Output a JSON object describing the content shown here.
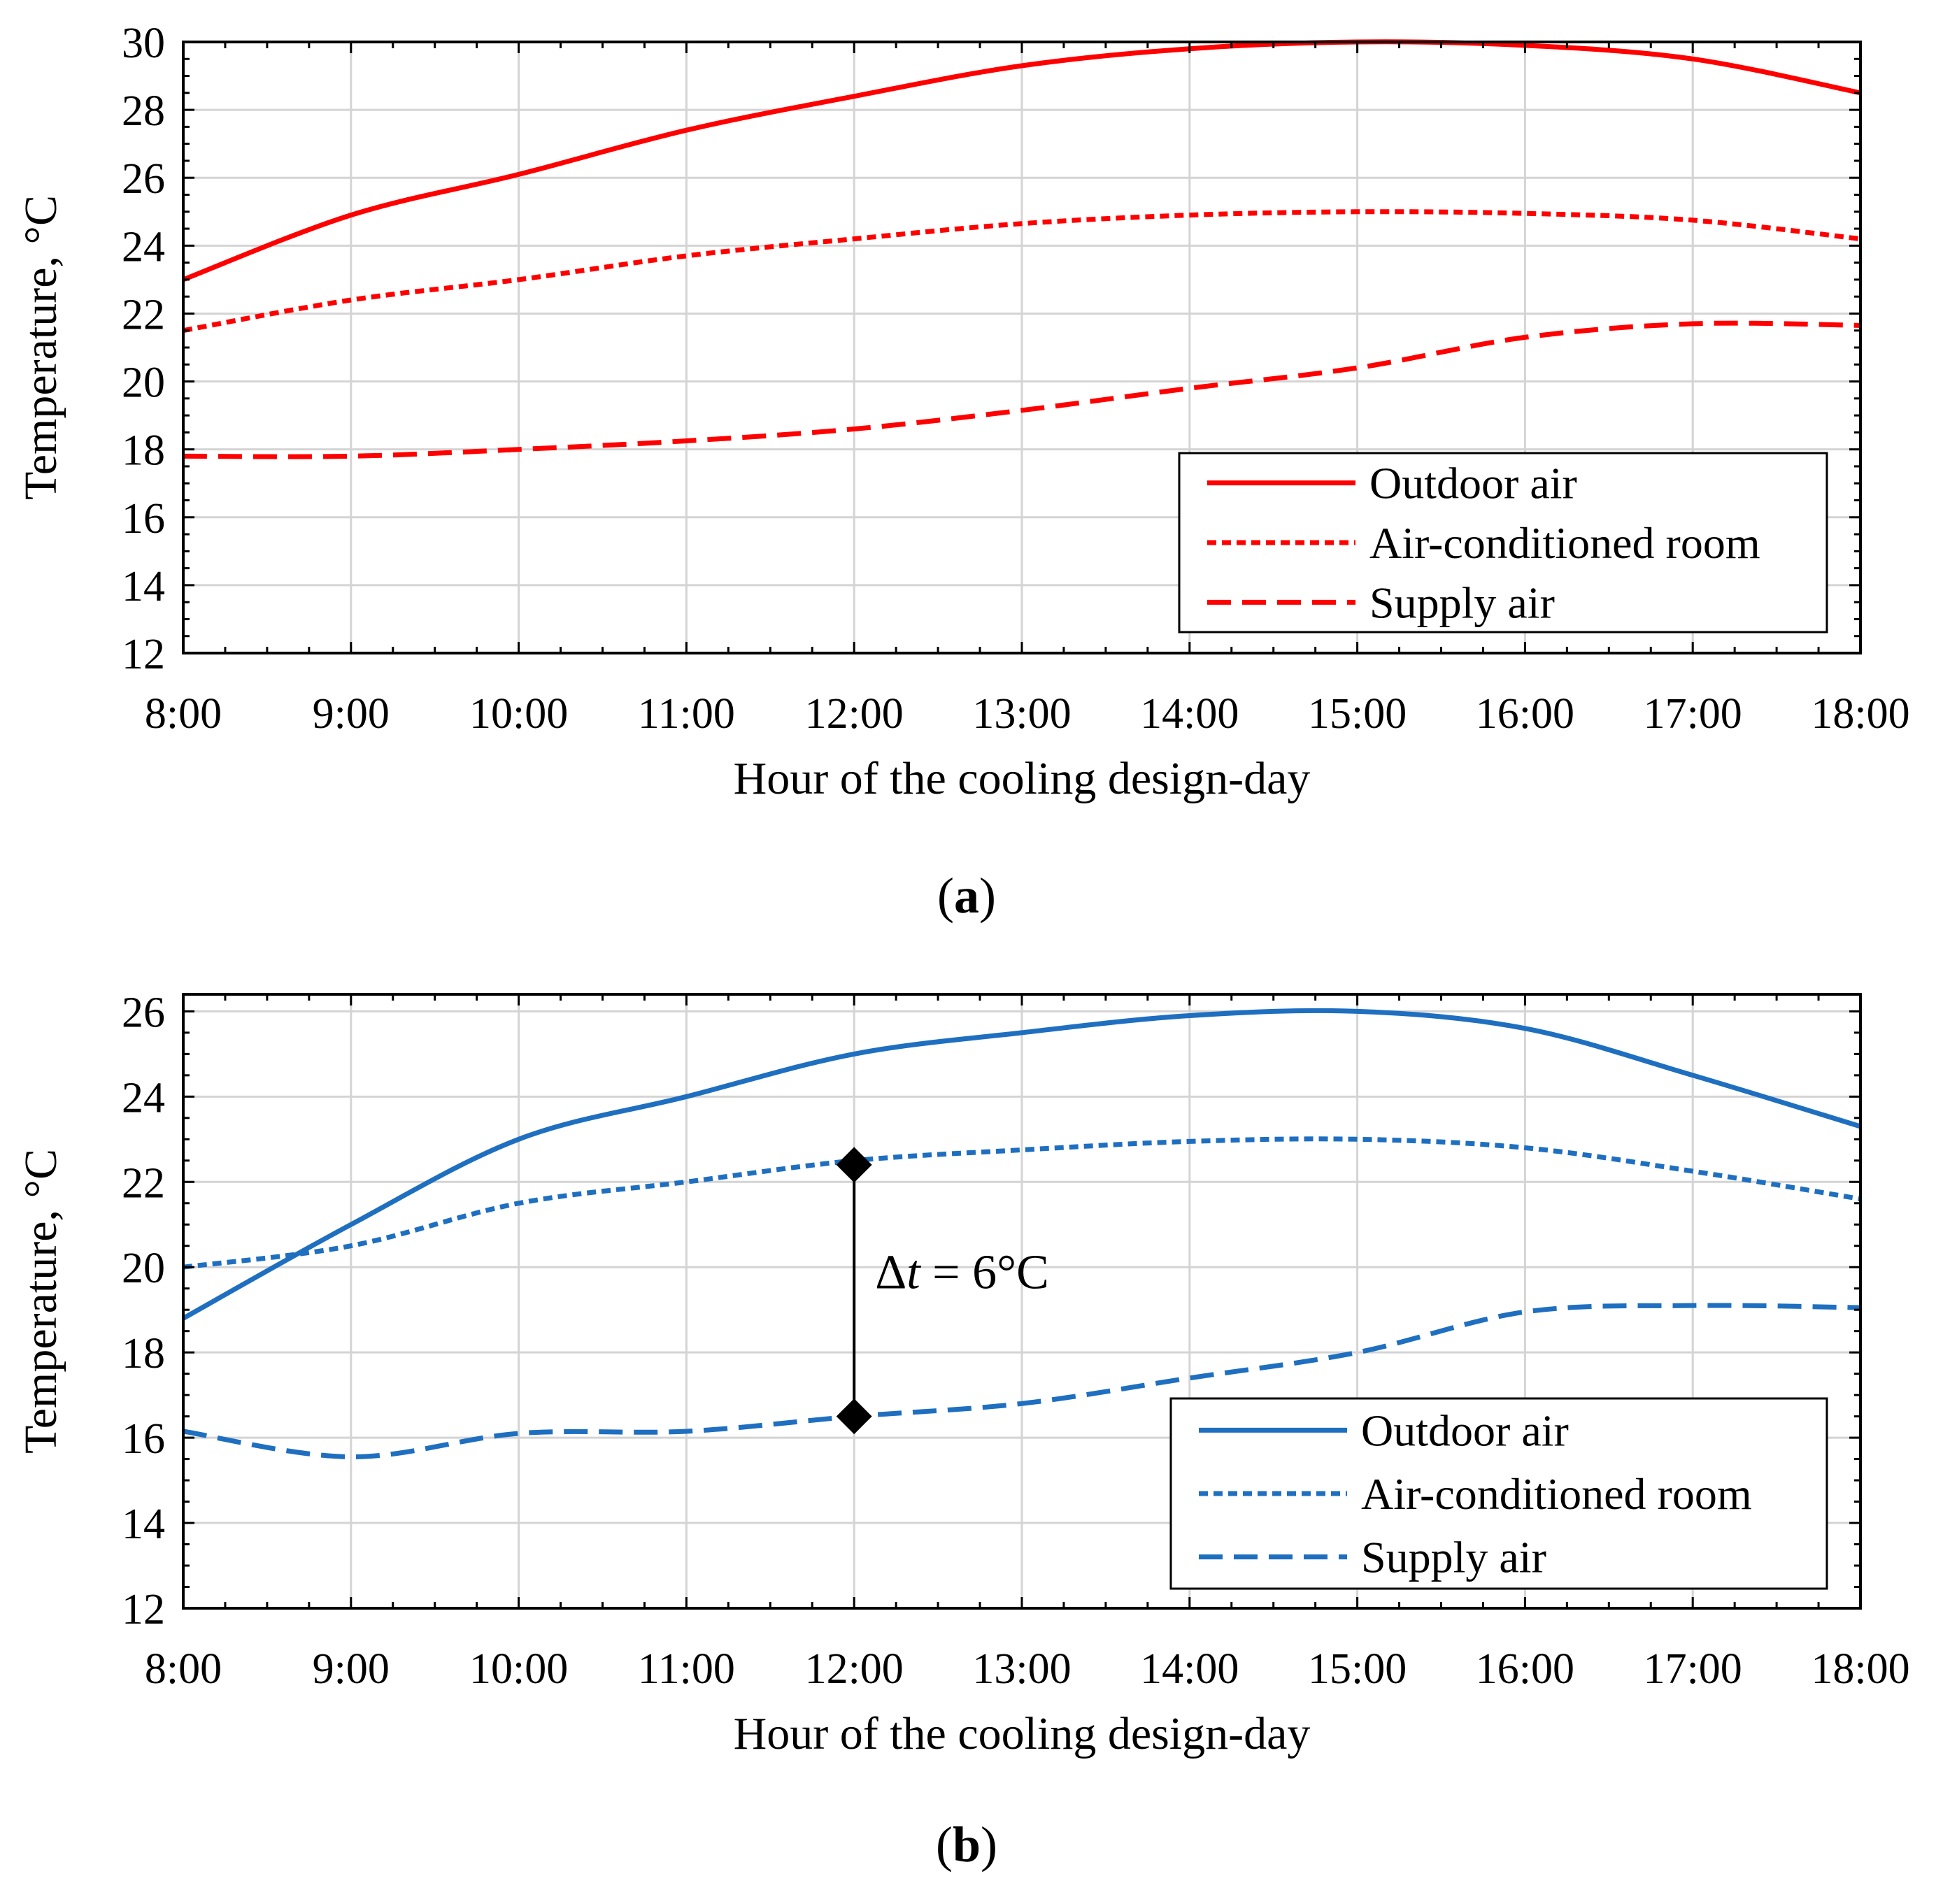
{
  "chart_data": [
    {
      "type": "line",
      "panel_label": "a",
      "title": "",
      "xlabel": "Hour of the cooling design-day",
      "ylabel": "Temperature, °C",
      "x_categories": [
        "8:00",
        "9:00",
        "10:00",
        "11:00",
        "12:00",
        "13:00",
        "14:00",
        "15:00",
        "16:00",
        "17:00",
        "18:00"
      ],
      "xlim": [
        8,
        18
      ],
      "ylim": [
        12,
        30
      ],
      "yticks": [
        12,
        14,
        16,
        18,
        20,
        22,
        24,
        26,
        28,
        30
      ],
      "ytick_labels": [
        "12",
        "14",
        "16",
        "18",
        "20",
        "22",
        "24",
        "26",
        "28",
        "30"
      ],
      "grid": true,
      "legend_position": "bottom-right",
      "series": [
        {
          "name": "Outdoor air",
          "color": "#ff0000",
          "dash": "solid",
          "x": [
            8,
            9,
            10,
            11,
            12,
            13,
            14,
            15,
            16,
            17,
            18
          ],
          "y": [
            23.0,
            24.9,
            26.1,
            27.4,
            28.4,
            29.3,
            29.8,
            30.0,
            29.9,
            29.5,
            28.5
          ]
        },
        {
          "name": "Air-conditioned room",
          "color": "#ff0000",
          "dash": "dotted",
          "x": [
            8,
            9,
            10,
            11,
            12,
            13,
            14,
            15,
            16,
            17,
            18
          ],
          "y": [
            21.5,
            22.4,
            23.0,
            23.7,
            24.2,
            24.65,
            24.9,
            25.0,
            24.95,
            24.75,
            24.2
          ]
        },
        {
          "name": "Supply air",
          "color": "#ff0000",
          "dash": "dashed",
          "x": [
            8,
            9,
            10,
            11,
            12,
            13,
            14,
            15,
            16,
            17,
            18
          ],
          "y": [
            17.8,
            17.8,
            18.0,
            18.25,
            18.6,
            19.15,
            19.8,
            20.4,
            21.3,
            21.7,
            21.65
          ]
        }
      ]
    },
    {
      "type": "line",
      "panel_label": "b",
      "title": "",
      "xlabel": "Hour of the cooling design-day",
      "ylabel": "Temperature, °C",
      "x_categories": [
        "8:00",
        "9:00",
        "10:00",
        "11:00",
        "12:00",
        "13:00",
        "14:00",
        "15:00",
        "16:00",
        "17:00",
        "18:00"
      ],
      "xlim": [
        8,
        18
      ],
      "ylim": [
        12,
        26.4
      ],
      "yticks": [
        12,
        14,
        16,
        18,
        20,
        22,
        24,
        26
      ],
      "ytick_labels": [
        "12",
        "14",
        "16",
        "18",
        "20",
        "22",
        "24",
        "26"
      ],
      "grid": true,
      "legend_position": "bottom-right",
      "series": [
        {
          "name": "Outdoor air",
          "color": "#1f6fc0",
          "dash": "solid",
          "x": [
            8,
            9,
            10,
            11,
            12,
            13,
            14,
            15,
            16,
            17,
            18
          ],
          "y": [
            18.8,
            21.0,
            23.0,
            24.0,
            25.0,
            25.5,
            25.9,
            26.0,
            25.6,
            24.5,
            23.3
          ]
        },
        {
          "name": "Air-conditioned room",
          "color": "#1f6fc0",
          "dash": "dotted",
          "x": [
            8,
            9,
            10,
            11,
            12,
            13,
            14,
            15,
            16,
            17,
            18
          ],
          "y": [
            20.0,
            20.5,
            21.5,
            22.0,
            22.5,
            22.75,
            22.95,
            23.0,
            22.8,
            22.25,
            21.6
          ]
        },
        {
          "name": "Supply air",
          "color": "#1f6fc0",
          "dash": "dashed",
          "x": [
            8,
            9,
            10,
            11,
            12,
            13,
            14,
            15,
            16,
            17,
            18
          ],
          "y": [
            16.15,
            15.55,
            16.1,
            16.15,
            16.5,
            16.8,
            17.4,
            18.0,
            18.95,
            19.1,
            19.05
          ]
        }
      ],
      "annotation": {
        "x": 12,
        "y_top": 22.4,
        "y_bottom": 16.5,
        "label_prefix": "Δ",
        "label_var": "t",
        "label_suffix": " = 6°C"
      }
    }
  ]
}
